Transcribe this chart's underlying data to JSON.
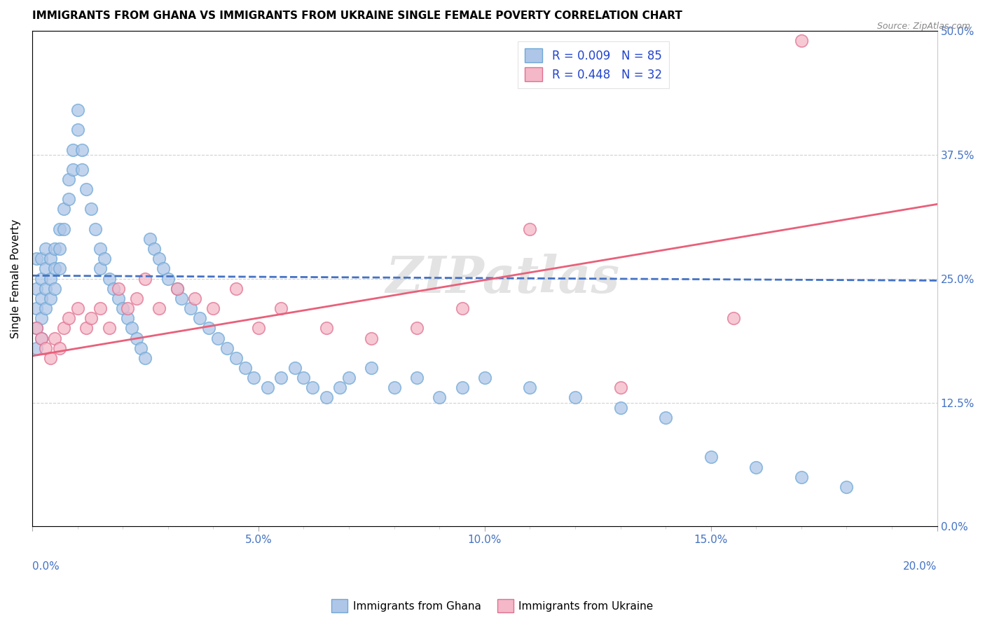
{
  "title": "IMMIGRANTS FROM GHANA VS IMMIGRANTS FROM UKRAINE SINGLE FEMALE POVERTY CORRELATION CHART",
  "source": "Source: ZipAtlas.com",
  "xlabel_ticks": [
    "0.0%",
    "",
    "",
    "",
    "",
    "5.0%",
    "",
    "",
    "",
    "",
    "10.0%",
    "",
    "",
    "",
    "",
    "15.0%",
    "",
    "",
    "",
    "",
    "20.0%"
  ],
  "xlabel_vals": [
    0.0,
    0.01,
    0.02,
    0.03,
    0.04,
    0.05,
    0.06,
    0.07,
    0.08,
    0.09,
    0.1,
    0.11,
    0.12,
    0.13,
    0.14,
    0.15,
    0.16,
    0.17,
    0.18,
    0.19,
    0.2
  ],
  "ylabel_ticks": [
    "0.0%",
    "12.5%",
    "25.0%",
    "37.5%",
    "50.0%"
  ],
  "ylabel_vals": [
    0.0,
    0.125,
    0.25,
    0.375,
    0.5
  ],
  "xlim": [
    0.0,
    0.2
  ],
  "ylim": [
    0.0,
    0.5
  ],
  "ghana_R": "0.009",
  "ghana_N": "85",
  "ukraine_R": "0.448",
  "ukraine_N": "32",
  "ghana_color": "#aec6e8",
  "ghana_edge": "#6fa8d6",
  "ukraine_color": "#f4b8c8",
  "ukraine_edge": "#e07090",
  "ghana_line_color": "#4472c4",
  "ukraine_line_color": "#e8607a",
  "watermark": "ZIPatlas",
  "ghana_line_x0": 0.0,
  "ghana_line_y0": 0.253,
  "ghana_line_x1": 0.2,
  "ghana_line_y1": 0.248,
  "ukraine_line_x0": 0.0,
  "ukraine_line_y0": 0.172,
  "ukraine_line_x1": 0.2,
  "ukraine_line_y1": 0.325,
  "ghana_x": [
    0.001,
    0.001,
    0.001,
    0.001,
    0.001,
    0.002,
    0.002,
    0.002,
    0.002,
    0.002,
    0.003,
    0.003,
    0.003,
    0.003,
    0.004,
    0.004,
    0.004,
    0.005,
    0.005,
    0.005,
    0.006,
    0.006,
    0.006,
    0.007,
    0.007,
    0.008,
    0.008,
    0.009,
    0.009,
    0.01,
    0.01,
    0.011,
    0.011,
    0.012,
    0.013,
    0.014,
    0.015,
    0.015,
    0.016,
    0.017,
    0.018,
    0.019,
    0.02,
    0.021,
    0.022,
    0.023,
    0.024,
    0.025,
    0.026,
    0.027,
    0.028,
    0.029,
    0.03,
    0.032,
    0.033,
    0.035,
    0.037,
    0.039,
    0.041,
    0.043,
    0.045,
    0.047,
    0.049,
    0.052,
    0.055,
    0.058,
    0.06,
    0.062,
    0.065,
    0.068,
    0.07,
    0.075,
    0.08,
    0.085,
    0.09,
    0.095,
    0.1,
    0.11,
    0.12,
    0.13,
    0.14,
    0.15,
    0.16,
    0.17,
    0.18
  ],
  "ghana_y": [
    0.24,
    0.22,
    0.2,
    0.18,
    0.27,
    0.23,
    0.25,
    0.21,
    0.27,
    0.19,
    0.26,
    0.24,
    0.22,
    0.28,
    0.25,
    0.23,
    0.27,
    0.26,
    0.24,
    0.28,
    0.3,
    0.28,
    0.26,
    0.32,
    0.3,
    0.35,
    0.33,
    0.38,
    0.36,
    0.4,
    0.42,
    0.38,
    0.36,
    0.34,
    0.32,
    0.3,
    0.28,
    0.26,
    0.27,
    0.25,
    0.24,
    0.23,
    0.22,
    0.21,
    0.2,
    0.19,
    0.18,
    0.17,
    0.29,
    0.28,
    0.27,
    0.26,
    0.25,
    0.24,
    0.23,
    0.22,
    0.21,
    0.2,
    0.19,
    0.18,
    0.17,
    0.16,
    0.15,
    0.14,
    0.15,
    0.16,
    0.15,
    0.14,
    0.13,
    0.14,
    0.15,
    0.16,
    0.14,
    0.15,
    0.13,
    0.14,
    0.15,
    0.14,
    0.13,
    0.12,
    0.11,
    0.07,
    0.06,
    0.05,
    0.04
  ],
  "ukraine_x": [
    0.001,
    0.002,
    0.003,
    0.004,
    0.005,
    0.006,
    0.007,
    0.008,
    0.01,
    0.012,
    0.013,
    0.015,
    0.017,
    0.019,
    0.021,
    0.023,
    0.025,
    0.028,
    0.032,
    0.036,
    0.04,
    0.045,
    0.05,
    0.055,
    0.065,
    0.075,
    0.085,
    0.095,
    0.11,
    0.13,
    0.155,
    0.17
  ],
  "ukraine_y": [
    0.2,
    0.19,
    0.18,
    0.17,
    0.19,
    0.18,
    0.2,
    0.21,
    0.22,
    0.2,
    0.21,
    0.22,
    0.2,
    0.24,
    0.22,
    0.23,
    0.25,
    0.22,
    0.24,
    0.23,
    0.22,
    0.24,
    0.2,
    0.22,
    0.2,
    0.19,
    0.2,
    0.22,
    0.3,
    0.14,
    0.21,
    0.49
  ]
}
